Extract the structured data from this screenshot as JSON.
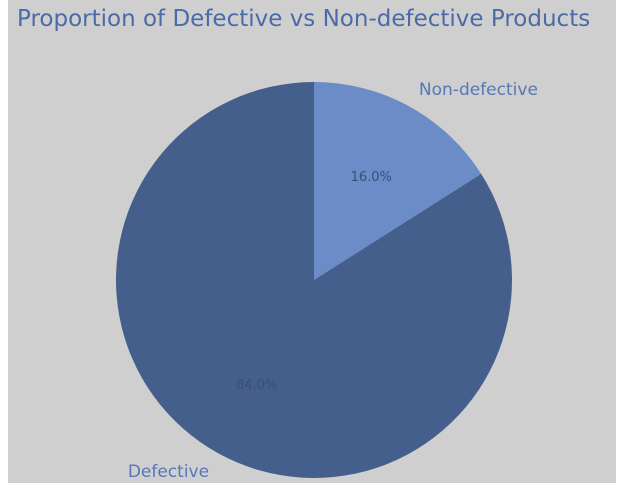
{
  "chart_data": {
    "type": "pie",
    "title": "Proportion of Defective vs Non-defective Products",
    "categories": [
      "Non-defective",
      "Defective"
    ],
    "values": [
      16.0,
      84.0
    ],
    "percent_labels": [
      "16.0%",
      "84.0%"
    ],
    "colors": [
      "#6b8cc7",
      "#445f8b"
    ],
    "label_colors": [
      "#5677b8",
      "#5677b8"
    ],
    "start_angle_deg": 90,
    "direction": "clockwise",
    "background": "#cfcfcf"
  }
}
